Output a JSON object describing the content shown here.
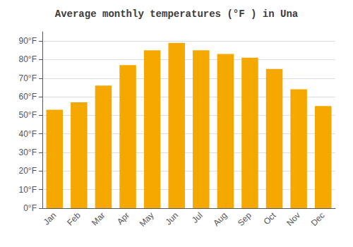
{
  "chart_data": {
    "type": "bar",
    "title": "Average monthly temperatures (°F ) in Una",
    "categories": [
      "Jan",
      "Feb",
      "Mar",
      "Apr",
      "May",
      "Jun",
      "Jul",
      "Aug",
      "Sep",
      "Oct",
      "Nov",
      "Dec"
    ],
    "values": [
      53,
      57,
      66,
      77,
      85,
      89,
      85,
      83,
      81,
      75,
      64,
      55
    ],
    "color": "#F5A800",
    "ylim": [
      0,
      95
    ],
    "yticks": [
      {
        "value": 0,
        "label": "0°F"
      },
      {
        "value": 10,
        "label": "10°F"
      },
      {
        "value": 20,
        "label": "20°F"
      },
      {
        "value": 30,
        "label": "30°F"
      },
      {
        "value": 40,
        "label": "40°F"
      },
      {
        "value": 50,
        "label": "50°F"
      },
      {
        "value": 60,
        "label": "60°F"
      },
      {
        "value": 70,
        "label": "70°F"
      },
      {
        "value": 80,
        "label": "80°F"
      },
      {
        "value": 90,
        "label": "90°F"
      }
    ],
    "grid": true
  }
}
